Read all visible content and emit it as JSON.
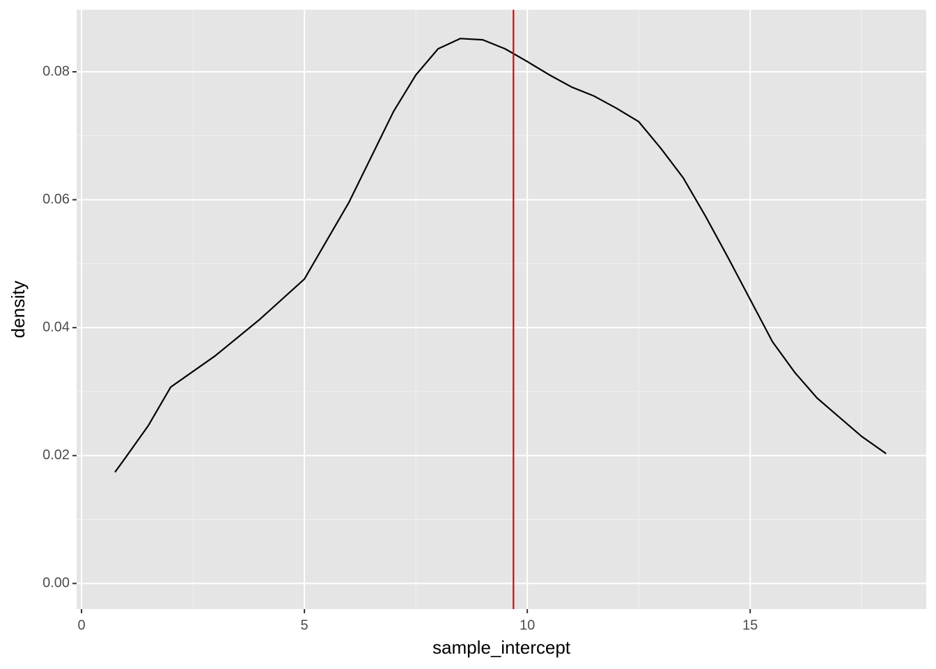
{
  "chart_data": {
    "type": "line",
    "x_label": "sample_intercept",
    "y_label": "density",
    "x": [
      0.75,
      1,
      1.5,
      2,
      3,
      4,
      5,
      5.5,
      6,
      6.5,
      7,
      7.5,
      8,
      8.5,
      9,
      9.5,
      10,
      10.5,
      11,
      11.5,
      12,
      12.5,
      13,
      13.5,
      14,
      14.5,
      15,
      15.5,
      16,
      16.5,
      17,
      17.5,
      18.05
    ],
    "series": [
      {
        "color": "#000000",
        "values": [
          0.0174,
          0.0198,
          0.0247,
          0.0307,
          0.0356,
          0.0413,
          0.0476,
          0.0536,
          0.0596,
          0.0667,
          0.0738,
          0.0795,
          0.0836,
          0.0852,
          0.085,
          0.0836,
          0.0816,
          0.0795,
          0.0776,
          0.0762,
          0.0743,
          0.0722,
          0.068,
          0.0634,
          0.0574,
          0.051,
          0.0444,
          0.0378,
          0.033,
          0.029,
          0.026,
          0.023,
          0.0203
        ]
      }
    ],
    "vline": {
      "x": 9.69,
      "color": "#e00000"
    },
    "xlim": [
      -0.11,
      18.95
    ],
    "xticks": [
      0,
      5,
      10,
      15
    ],
    "ylim": [
      -0.004,
      0.0897
    ],
    "yticks": [
      {
        "value": 0,
        "label": "0.00"
      },
      {
        "value": 0.02,
        "label": "0.02"
      },
      {
        "value": 0.04,
        "label": "0.04"
      },
      {
        "value": 0.06,
        "label": "0.06"
      },
      {
        "value": 0.08,
        "label": "0.08"
      }
    ],
    "grid": true
  }
}
